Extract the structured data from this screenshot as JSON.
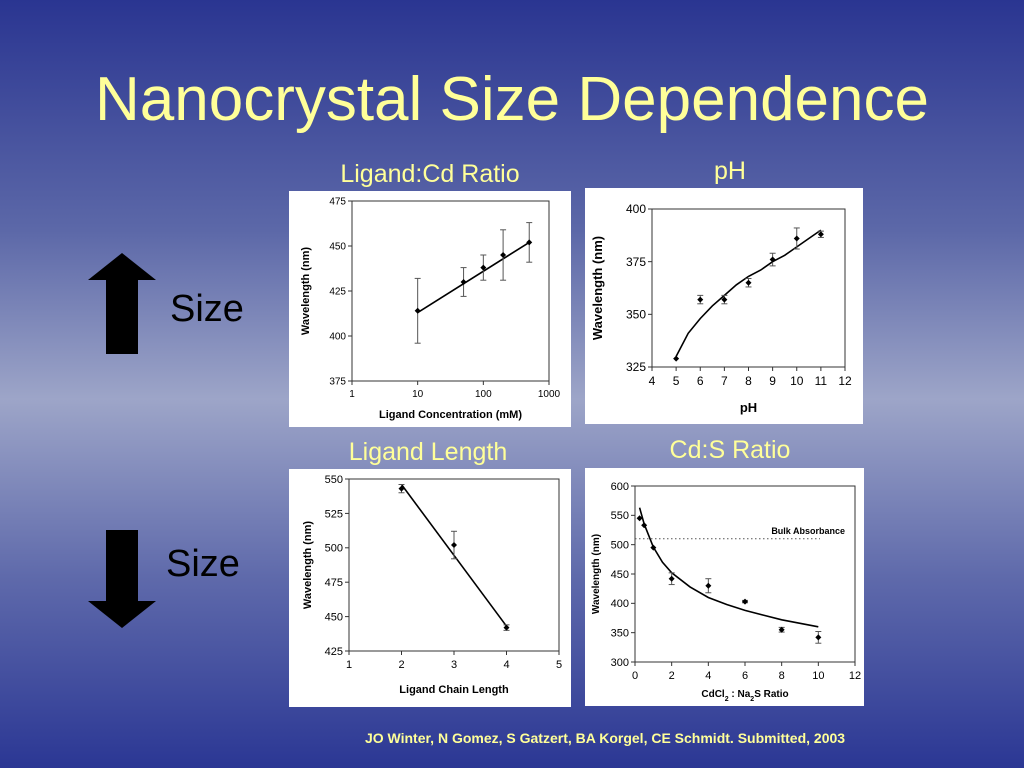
{
  "title": "Nanocrystal Size Dependence",
  "size_labels": {
    "up": "Size",
    "down": "Size"
  },
  "citation": "JO Winter, N Gomez, S Gatzert, BA Korgel, CE Schmidt. Submitted, 2003",
  "chart_data": [
    {
      "id": "ligand_cd",
      "panel_title": "Ligand:Cd Ratio",
      "type": "scatter",
      "xscale": "log",
      "xlim": [
        1,
        1000
      ],
      "ylim": [
        375,
        475
      ],
      "xticks": [
        1,
        10,
        100,
        1000
      ],
      "yticks": [
        375,
        400,
        425,
        450,
        475
      ],
      "xlabel": "Ligand Concentration (mM)",
      "ylabel": "Wavelength (nm)",
      "points": [
        {
          "x": 10,
          "y": 414,
          "err": 18
        },
        {
          "x": 50,
          "y": 430,
          "err": 8
        },
        {
          "x": 100,
          "y": 438,
          "err": 7
        },
        {
          "x": 200,
          "y": 445,
          "err": 14
        },
        {
          "x": 500,
          "y": 452,
          "err": 11
        }
      ],
      "fit": {
        "kind": "line",
        "points": [
          [
            10,
            413
          ],
          [
            500,
            452
          ]
        ]
      }
    },
    {
      "id": "ph",
      "panel_title": "pH",
      "type": "scatter",
      "xlim": [
        4,
        12
      ],
      "ylim": [
        325,
        400
      ],
      "xticks": [
        4,
        5,
        6,
        7,
        8,
        9,
        10,
        11,
        12
      ],
      "yticks": [
        325,
        350,
        375,
        400
      ],
      "xlabel": "pH",
      "ylabel": "Wavelength (nm)",
      "points": [
        {
          "x": 5,
          "y": 329,
          "err": 0
        },
        {
          "x": 6,
          "y": 357,
          "err": 2
        },
        {
          "x": 7,
          "y": 357,
          "err": 2
        },
        {
          "x": 8,
          "y": 365,
          "err": 2
        },
        {
          "x": 9,
          "y": 376,
          "err": 3
        },
        {
          "x": 10,
          "y": 386,
          "err": 5
        },
        {
          "x": 11,
          "y": 388,
          "err": 1.5
        }
      ],
      "fit": {
        "kind": "curve",
        "points": [
          [
            5,
            330
          ],
          [
            5.5,
            341
          ],
          [
            6,
            348
          ],
          [
            6.5,
            354
          ],
          [
            7,
            359
          ],
          [
            7.5,
            364
          ],
          [
            8,
            368
          ],
          [
            8.5,
            371
          ],
          [
            9,
            375
          ],
          [
            9.5,
            378
          ],
          [
            10,
            382
          ],
          [
            10.5,
            386
          ],
          [
            11,
            390
          ]
        ]
      }
    },
    {
      "id": "ligand_length",
      "panel_title": "Ligand Length",
      "type": "scatter",
      "xlim": [
        1,
        5
      ],
      "ylim": [
        425,
        550
      ],
      "xticks": [
        1,
        2,
        3,
        4,
        5
      ],
      "yticks": [
        425,
        450,
        475,
        500,
        525,
        550
      ],
      "xlabel": "Ligand Chain Length",
      "ylabel": "Wavelength (nm)",
      "points": [
        {
          "x": 2,
          "y": 543,
          "err": 3
        },
        {
          "x": 3,
          "y": 502,
          "err": 10
        },
        {
          "x": 4,
          "y": 442,
          "err": 2
        }
      ],
      "fit": {
        "kind": "line",
        "points": [
          [
            2,
            546
          ],
          [
            4,
            443
          ]
        ]
      }
    },
    {
      "id": "cd_s",
      "panel_title": "Cd:S Ratio",
      "type": "scatter",
      "xlim": [
        0,
        12
      ],
      "ylim": [
        300,
        600
      ],
      "xticks": [
        0,
        2,
        4,
        6,
        8,
        10,
        12
      ],
      "yticks": [
        300,
        350,
        400,
        450,
        500,
        550,
        600
      ],
      "xlabel_parts": [
        "CdCl",
        "2",
        " : Na",
        "2",
        "S Ratio"
      ],
      "ylabel": "Wavelength (nm)",
      "points": [
        {
          "x": 0.25,
          "y": 545,
          "err": 0
        },
        {
          "x": 0.5,
          "y": 533,
          "err": 0
        },
        {
          "x": 1,
          "y": 495,
          "err": 0
        },
        {
          "x": 2,
          "y": 442,
          "err": 10
        },
        {
          "x": 4,
          "y": 430,
          "err": 12
        },
        {
          "x": 6,
          "y": 403,
          "err": 2
        },
        {
          "x": 8,
          "y": 355,
          "err": 4
        },
        {
          "x": 10,
          "y": 342,
          "err": 10
        }
      ],
      "fit": {
        "kind": "curve",
        "points": [
          [
            0.25,
            563
          ],
          [
            0.5,
            535
          ],
          [
            1,
            496
          ],
          [
            1.5,
            470
          ],
          [
            2,
            452
          ],
          [
            3,
            428
          ],
          [
            4,
            410
          ],
          [
            5,
            398
          ],
          [
            6,
            388
          ],
          [
            7,
            380
          ],
          [
            8,
            372
          ],
          [
            9,
            366
          ],
          [
            10,
            360
          ]
        ]
      },
      "reference": {
        "label": "Bulk Absorbance",
        "y": 510,
        "style": "dotted"
      }
    }
  ]
}
